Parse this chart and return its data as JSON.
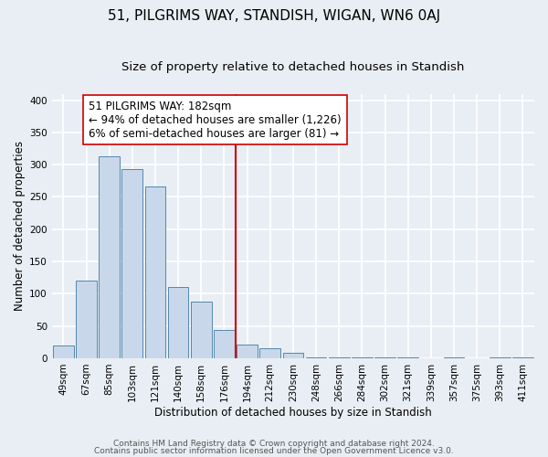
{
  "title": "51, PILGRIMS WAY, STANDISH, WIGAN, WN6 0AJ",
  "subtitle": "Size of property relative to detached houses in Standish",
  "xlabel": "Distribution of detached houses by size in Standish",
  "ylabel": "Number of detached properties",
  "bar_labels": [
    "49sqm",
    "67sqm",
    "85sqm",
    "103sqm",
    "121sqm",
    "140sqm",
    "158sqm",
    "176sqm",
    "194sqm",
    "212sqm",
    "230sqm",
    "248sqm",
    "266sqm",
    "284sqm",
    "302sqm",
    "321sqm",
    "339sqm",
    "357sqm",
    "375sqm",
    "393sqm",
    "411sqm"
  ],
  "bar_heights": [
    20,
    121,
    313,
    293,
    266,
    111,
    88,
    44,
    21,
    16,
    8,
    2,
    2,
    1,
    2,
    1,
    0,
    1,
    0,
    1,
    2
  ],
  "bar_color": "#c8d8ea",
  "bar_edge_color": "#5588aa",
  "vline_x": 7.5,
  "vline_color": "#cc0000",
  "annotation_line1": "51 PILGRIMS WAY: 182sqm",
  "annotation_line2": "← 94% of detached houses are smaller (1,226)",
  "annotation_line3": "6% of semi-detached houses are larger (81) →",
  "annotation_box_color": "#ffffff",
  "annotation_box_edge": "#cc0000",
  "ylim": [
    0,
    410
  ],
  "yticks": [
    0,
    50,
    100,
    150,
    200,
    250,
    300,
    350,
    400
  ],
  "footer1": "Contains HM Land Registry data © Crown copyright and database right 2024.",
  "footer2": "Contains public sector information licensed under the Open Government Licence v3.0.",
  "bg_color": "#e8eef4",
  "grid_color": "#ffffff",
  "title_fontsize": 11,
  "subtitle_fontsize": 9.5,
  "axis_label_fontsize": 8.5,
  "tick_fontsize": 7.5,
  "annotation_fontsize": 8.5,
  "footer_fontsize": 6.5
}
